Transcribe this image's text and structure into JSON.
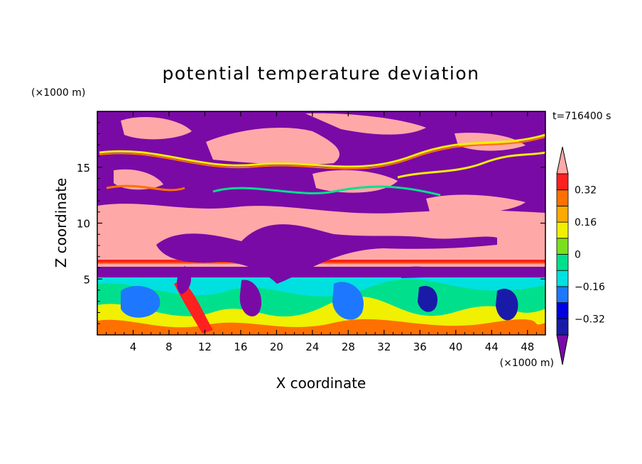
{
  "chart_data": {
    "type": "heatmap",
    "title": "potential temperature deviation",
    "xlabel": "X coordinate",
    "ylabel": "Z coordinate",
    "x_unit": "(×1000 m)",
    "y_unit": "(×1000 m)",
    "time_label": "t=716400 s",
    "xlim": [
      0,
      50
    ],
    "ylim": [
      0,
      20
    ],
    "x_ticks": [
      4,
      8,
      12,
      16,
      20,
      24,
      28,
      32,
      36,
      40,
      44,
      48
    ],
    "y_ticks": [
      5,
      10,
      15
    ],
    "colorbar": {
      "levels": [
        -0.4,
        -0.32,
        -0.24,
        -0.16,
        -0.08,
        0,
        0.08,
        0.16,
        0.24,
        0.32,
        0.4
      ],
      "labeled_ticks": [
        -0.32,
        -0.16,
        0,
        0.16,
        0.32
      ],
      "colors": [
        "#1a1aa8",
        "#0000e0",
        "#1e78ff",
        "#00e0e0",
        "#00e08c",
        "#7ae01e",
        "#f0f000",
        "#ffaa00",
        "#ff7000",
        "#ff2020"
      ],
      "under_color": "#7a0aa6",
      "over_color": "#ffa8a8",
      "extend": "both"
    },
    "legend_position": "right",
    "grid": false
  }
}
